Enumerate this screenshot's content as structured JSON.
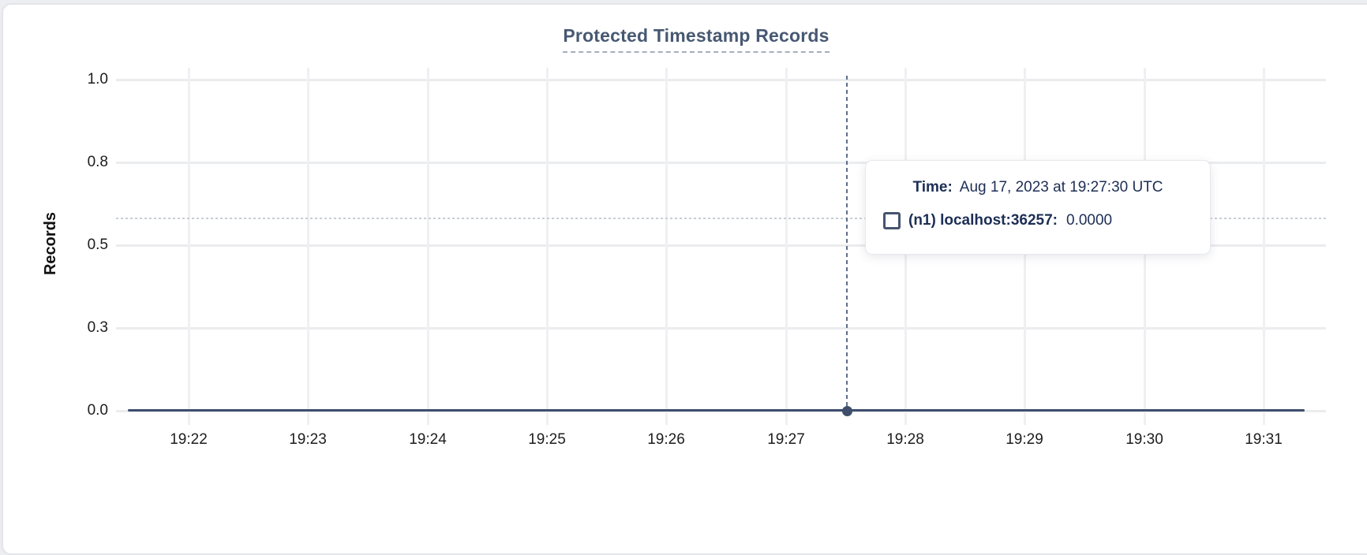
{
  "page": {
    "background_color": "#eceef2",
    "card_background": "#ffffff",
    "card_border_color": "#e3e5e9"
  },
  "header": {
    "title": "Protected Timestamp Records",
    "title_color": "#475872"
  },
  "axes": {
    "y_label": "Records",
    "y_tick_labels": [
      "1.0",
      "0.8",
      "0.5",
      "0.3",
      "0.0"
    ],
    "x_tick_labels": [
      "19:22",
      "19:23",
      "19:24",
      "19:25",
      "19:26",
      "19:27",
      "19:28",
      "19:29",
      "19:30",
      "19:31"
    ]
  },
  "tooltip": {
    "time_label": "Time:",
    "time_value": "Aug 17, 2023 at 19:27:30 UTC",
    "series_icon": "checkbox-outline-icon",
    "series_label": "(n1) localhost:36257:",
    "series_value": "0.0000",
    "text_color": "#1d2e55"
  },
  "chart_data": {
    "type": "line",
    "title": "Protected Timestamp Records",
    "xlabel": "",
    "ylabel": "Records",
    "x": [
      "19:22",
      "19:23",
      "19:24",
      "19:25",
      "19:26",
      "19:27",
      "19:28",
      "19:29",
      "19:30",
      "19:31"
    ],
    "y_ticks": [
      0.0,
      0.3,
      0.5,
      0.8,
      1.0
    ],
    "ylim": [
      0,
      1
    ],
    "grid": true,
    "legend_position": "none",
    "series": [
      {
        "name": "(n1) localhost:36257",
        "color": "#3e4e6b",
        "values": [
          0,
          0,
          0,
          0,
          0,
          0,
          0,
          0,
          0,
          0
        ]
      }
    ],
    "hover_point": {
      "time": "Aug 17, 2023 at 19:27:30 UTC",
      "x": "19:27:30",
      "value": 0.0
    }
  },
  "colors": {
    "gridline_horizontal": "#ebecee",
    "gridline_vertical": "#f0f0f2",
    "series_line": "#3e4e6b",
    "crosshair_vertical": "#5f6e89",
    "crosshair_horizontal": "#c8cdd5",
    "tick_label": "#1d1d1f"
  }
}
